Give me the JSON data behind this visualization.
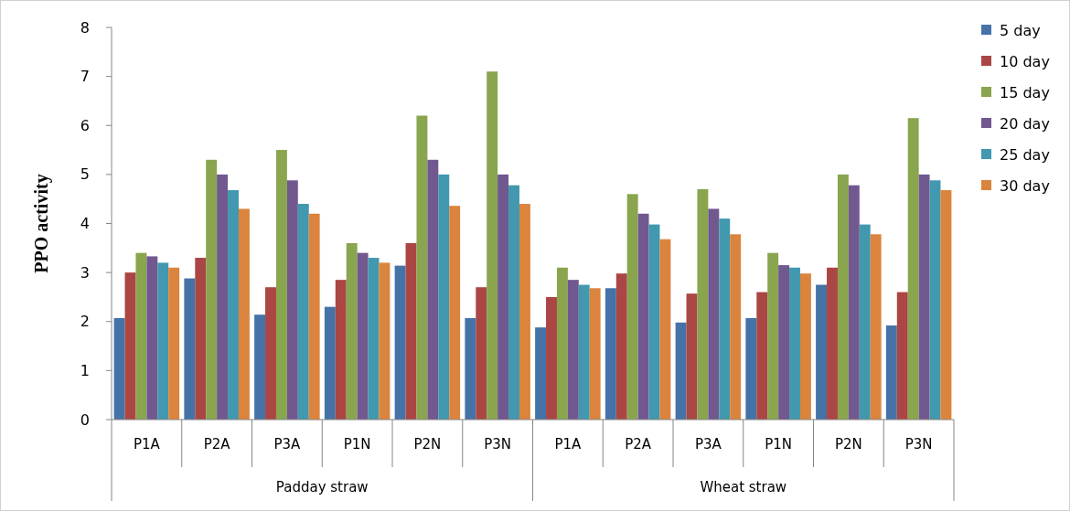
{
  "chart_data": {
    "type": "bar",
    "ylabel": "PPO activity",
    "categories": [
      "P1A",
      "P2A",
      "P3A",
      "P1N",
      "P2N",
      "P3N",
      "P1A",
      "P2A",
      "P3A",
      "P1N",
      "P2N",
      "P3N"
    ],
    "series": [
      {
        "name": "5 day",
        "color": "#4572a7",
        "values": [
          2.07,
          2.88,
          2.14,
          2.3,
          3.14,
          2.07,
          1.88,
          2.68,
          1.98,
          2.07,
          2.75,
          1.92
        ]
      },
      {
        "name": "10 day",
        "color": "#aa4643",
        "values": [
          3.0,
          3.3,
          2.7,
          2.85,
          3.6,
          2.7,
          2.5,
          2.98,
          2.57,
          2.6,
          3.1,
          2.6
        ]
      },
      {
        "name": "15 day",
        "color": "#89a54e",
        "values": [
          3.4,
          5.3,
          5.5,
          3.6,
          6.2,
          7.1,
          3.1,
          4.6,
          4.7,
          3.4,
          5.0,
          6.15
        ]
      },
      {
        "name": "20 day",
        "color": "#71588f",
        "values": [
          3.33,
          5.0,
          4.88,
          3.4,
          5.3,
          5.0,
          2.85,
          4.2,
          4.3,
          3.15,
          4.78,
          5.0
        ]
      },
      {
        "name": "25 day",
        "color": "#4198af",
        "values": [
          3.2,
          4.68,
          4.4,
          3.3,
          5.0,
          4.78,
          2.75,
          3.98,
          4.1,
          3.1,
          3.98,
          4.88
        ]
      },
      {
        "name": "30 day",
        "color": "#db843d",
        "values": [
          3.1,
          4.3,
          4.2,
          3.2,
          4.36,
          4.4,
          2.68,
          3.68,
          3.78,
          2.98,
          3.78,
          4.68
        ]
      }
    ],
    "annotations": [
      "Padday straw",
      "Wheat straw"
    ],
    "ylim": [
      0,
      8
    ],
    "yticks": [
      0,
      1,
      2,
      3,
      4,
      5,
      6,
      7,
      8
    ],
    "legend": "right",
    "grid": false
  }
}
